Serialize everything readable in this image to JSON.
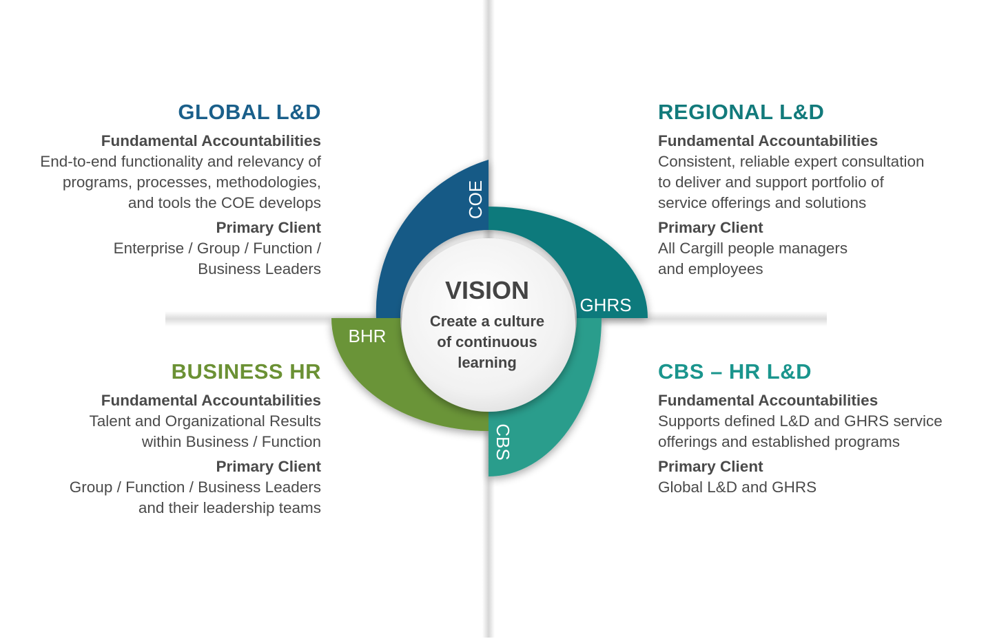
{
  "center": {
    "title": "VISION",
    "lines": [
      "Create a culture",
      "of continuous",
      "learning"
    ]
  },
  "ring": {
    "coe": {
      "label": "COE",
      "color": "#155a86"
    },
    "ghrs": {
      "label": "GHRS",
      "color": "#0f7a7c"
    },
    "cbs": {
      "label": "CBS",
      "color": "#2a9d8c"
    },
    "bhr": {
      "label": "BHR",
      "color": "#6a9438"
    }
  },
  "quadrants": {
    "global": {
      "title": "GLOBAL L&D",
      "color": "#1a5f8a",
      "acc_head": "Fundamental Accountabilities",
      "acc_text": "End-to-end functionality and relevancy of\nprograms, processes, methodologies,\nand tools the COE develops",
      "client_head": "Primary Client",
      "client_text": "Enterprise / Group / Function /\nBusiness Leaders"
    },
    "regional": {
      "title": "REGIONAL L&D",
      "color": "#127a7b",
      "acc_head": "Fundamental Accountabilities",
      "acc_text": "Consistent, reliable expert consultation\nto deliver and support portfolio of\nservice offerings and solutions",
      "client_head": "Primary Client",
      "client_text": "All Cargill people managers\nand employees"
    },
    "business": {
      "title": "BUSINESS HR",
      "color": "#6b9134",
      "acc_head": "Fundamental Accountabilities",
      "acc_text": "Talent and Organizational Results\nwithin Business / Function",
      "client_head": "Primary Client",
      "client_text": "Group / Function / Business Leaders\nand their leadership teams"
    },
    "cbs": {
      "title": "CBS – HR L&D",
      "color": "#1a958d",
      "acc_head": "Fundamental Accountabilities",
      "acc_text": "Supports defined L&D and GHRS service\nofferings and established programs",
      "client_head": "Primary Client",
      "client_text": "Global L&D and GHRS"
    }
  }
}
